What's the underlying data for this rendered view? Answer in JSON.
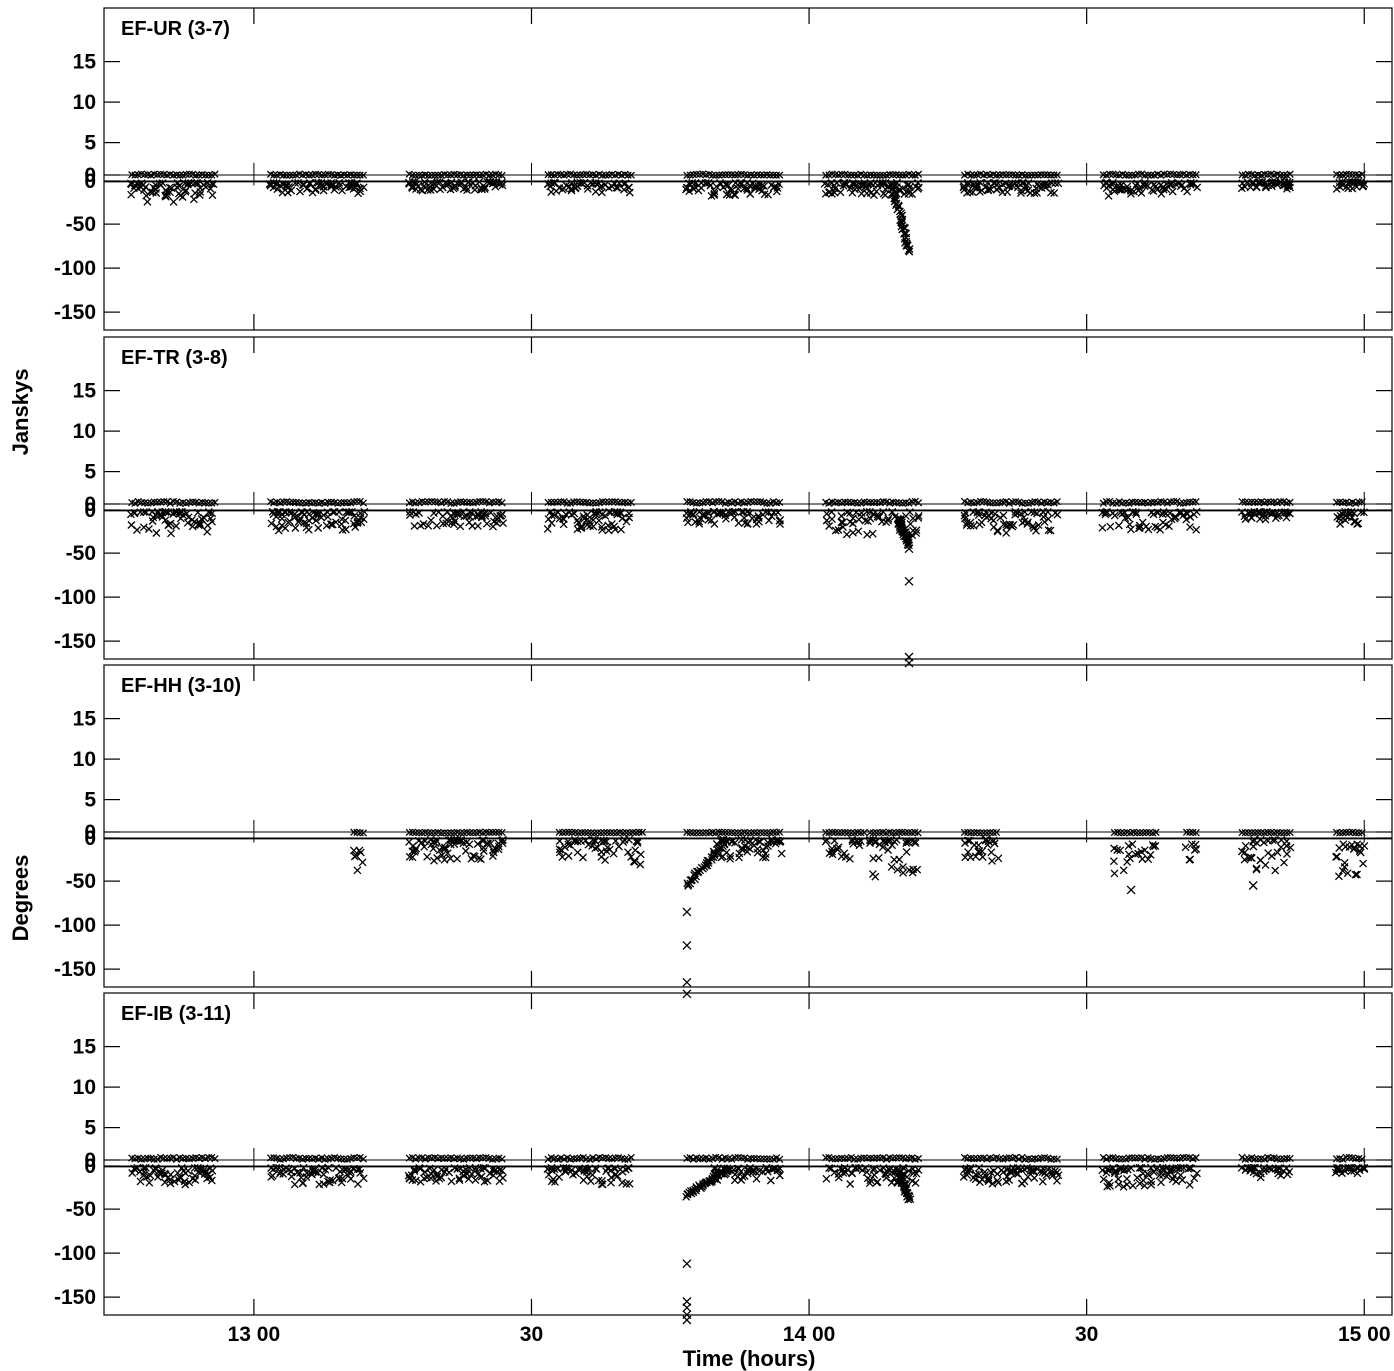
{
  "figure": {
    "ylabel_top": "Janskys",
    "ylabel_bottom": "Degrees",
    "xlabel": "Time (hours)"
  },
  "chart_data": {
    "type": "scatter",
    "marker": "x",
    "x_unit": "hours",
    "xlim": [
      12.73,
      15.05
    ],
    "ylim": [
      -180,
      19
    ],
    "x_ticks": [
      {
        "value": 13.0,
        "label": "13 00"
      },
      {
        "value": 13.5,
        "label": "30"
      },
      {
        "value": 14.0,
        "label": "14 00"
      },
      {
        "value": 14.5,
        "label": "30"
      },
      {
        "value": 15.0,
        "label": "15 00"
      }
    ],
    "y_ticks": [
      {
        "value": 15,
        "label": "15"
      },
      {
        "value": 10,
        "label": "10"
      },
      {
        "value": 5,
        "label": "5"
      },
      {
        "value": 1,
        "label": "0"
      },
      {
        "value": -1,
        "label": "0"
      },
      {
        "value": -50,
        "label": "-50"
      },
      {
        "value": -100,
        "label": "-100"
      },
      {
        "value": -150,
        "label": "-150"
      }
    ],
    "reference_lines": [
      1,
      -1,
      -2
    ],
    "panels": [
      {
        "title": "EF-UR (3-7)",
        "amp_level": 1.0,
        "scans": [
          [
            12.78,
            12.93
          ],
          [
            13.03,
            13.2
          ],
          [
            13.28,
            13.45
          ],
          [
            13.53,
            13.68
          ],
          [
            13.78,
            13.95
          ],
          [
            14.03,
            14.2
          ],
          [
            14.28,
            14.45
          ],
          [
            14.53,
            14.7
          ],
          [
            14.78,
            14.87
          ],
          [
            14.95,
            15.0
          ]
        ],
        "phase_clusters": [
          [
            12.78,
            12.93,
            -3,
            -25
          ],
          [
            13.03,
            13.2,
            -3,
            -15
          ],
          [
            13.28,
            13.45,
            -2,
            -12
          ],
          [
            13.53,
            13.68,
            -3,
            -15
          ],
          [
            13.78,
            13.95,
            -3,
            -18
          ],
          [
            14.03,
            14.2,
            -3,
            -18
          ],
          [
            14.28,
            14.45,
            -3,
            -15
          ],
          [
            14.53,
            14.7,
            -3,
            -18
          ],
          [
            14.78,
            14.87,
            -2,
            -10
          ],
          [
            14.95,
            15.0,
            -2,
            -10
          ]
        ],
        "phase_tracks": [
          [
            14.15,
            -5,
            14.18,
            -82
          ]
        ],
        "phase_outliers": [
          [
            14.18,
            -15
          ]
        ]
      },
      {
        "title": "EF-TR (3-8)",
        "amp_level": 1.2,
        "scans": [
          [
            12.78,
            12.93
          ],
          [
            13.03,
            13.2
          ],
          [
            13.28,
            13.45
          ],
          [
            13.53,
            13.68
          ],
          [
            13.78,
            13.95
          ],
          [
            14.03,
            14.2
          ],
          [
            14.28,
            14.45
          ],
          [
            14.53,
            14.7
          ],
          [
            14.78,
            14.87
          ],
          [
            14.95,
            15.0
          ]
        ],
        "phase_clusters": [
          [
            12.78,
            12.93,
            -3,
            -28
          ],
          [
            13.03,
            13.2,
            -3,
            -25
          ],
          [
            13.28,
            13.45,
            -3,
            -20
          ],
          [
            13.53,
            13.68,
            -3,
            -25
          ],
          [
            13.78,
            13.95,
            -3,
            -18
          ],
          [
            14.03,
            14.2,
            -3,
            -30
          ],
          [
            14.28,
            14.45,
            -3,
            -28
          ],
          [
            14.53,
            14.7,
            -3,
            -25
          ],
          [
            14.78,
            14.87,
            -3,
            -12
          ],
          [
            14.95,
            15.0,
            -3,
            -18
          ]
        ],
        "phase_tracks": [
          [
            14.16,
            -10,
            14.18,
            -40
          ]
        ],
        "phase_outliers": [
          [
            14.18,
            -82
          ],
          [
            14.18,
            -168
          ],
          [
            14.18,
            -175
          ],
          [
            14.18,
            -45
          ]
        ]
      },
      {
        "title": "EF-HH (3-10)",
        "amp_level": 0.8,
        "scans": [
          [
            13.18,
            13.2
          ],
          [
            13.28,
            13.45
          ],
          [
            13.55,
            13.7
          ],
          [
            13.78,
            13.95
          ],
          [
            14.03,
            14.1
          ],
          [
            14.11,
            14.2
          ],
          [
            14.28,
            14.34
          ],
          [
            14.55,
            14.63
          ],
          [
            14.68,
            14.7
          ],
          [
            14.78,
            14.87
          ],
          [
            14.95,
            15.0
          ]
        ],
        "phase_clusters": [
          [
            13.18,
            13.2,
            -15,
            -42
          ],
          [
            13.28,
            13.45,
            -3,
            -28
          ],
          [
            13.55,
            13.7,
            -3,
            -32
          ],
          [
            13.83,
            13.95,
            -3,
            -25
          ],
          [
            14.03,
            14.1,
            -3,
            -25
          ],
          [
            14.11,
            14.2,
            -3,
            -45
          ],
          [
            14.28,
            14.34,
            -3,
            -28
          ],
          [
            14.55,
            14.63,
            -8,
            -45
          ],
          [
            14.68,
            14.7,
            -8,
            -32
          ],
          [
            14.78,
            14.87,
            -3,
            -40
          ],
          [
            14.95,
            15.0,
            -8,
            -50
          ]
        ],
        "phase_tracks": [
          [
            13.78,
            -55,
            13.85,
            -5
          ]
        ],
        "phase_outliers": [
          [
            13.78,
            -85
          ],
          [
            13.78,
            -123
          ],
          [
            13.78,
            -165
          ],
          [
            13.78,
            -178
          ],
          [
            14.58,
            -60
          ],
          [
            14.8,
            -55
          ]
        ]
      },
      {
        "title": "EF-IB (3-11)",
        "amp_level": 1.2,
        "scans": [
          [
            12.78,
            12.93
          ],
          [
            13.03,
            13.2
          ],
          [
            13.28,
            13.45
          ],
          [
            13.53,
            13.68
          ],
          [
            13.78,
            13.95
          ],
          [
            14.03,
            14.2
          ],
          [
            14.28,
            14.45
          ],
          [
            14.53,
            14.7
          ],
          [
            14.78,
            14.87
          ],
          [
            14.95,
            15.0
          ]
        ],
        "phase_clusters": [
          [
            12.78,
            12.93,
            -3,
            -22
          ],
          [
            13.03,
            13.2,
            -3,
            -22
          ],
          [
            13.28,
            13.45,
            -3,
            -20
          ],
          [
            13.53,
            13.68,
            -3,
            -22
          ],
          [
            13.83,
            13.95,
            -3,
            -18
          ],
          [
            14.03,
            14.2,
            -3,
            -22
          ],
          [
            14.28,
            14.45,
            -3,
            -22
          ],
          [
            14.53,
            14.7,
            -3,
            -25
          ],
          [
            14.78,
            14.87,
            -3,
            -15
          ],
          [
            14.95,
            15.0,
            -3,
            -10
          ]
        ],
        "phase_tracks": [
          [
            13.78,
            -35,
            13.85,
            -5
          ],
          [
            14.16,
            -5,
            14.18,
            -38
          ]
        ],
        "phase_outliers": [
          [
            13.78,
            -112
          ],
          [
            13.78,
            -155
          ],
          [
            13.78,
            -162
          ],
          [
            13.78,
            -170
          ],
          [
            13.78,
            -176
          ]
        ]
      }
    ]
  }
}
